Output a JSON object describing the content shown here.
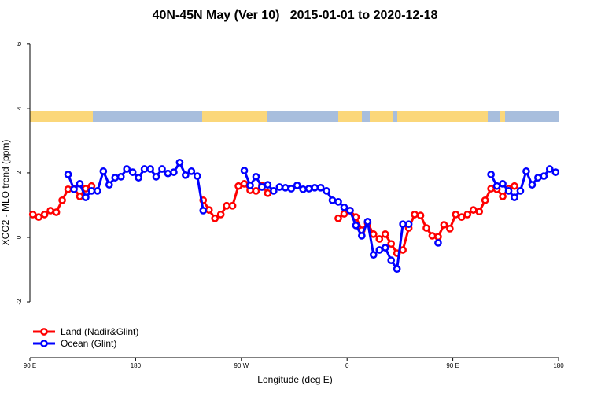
{
  "chart_data": {
    "type": "line",
    "title": "40N-45N May (Ver 10)   2015-01-01 to 2020-12-18",
    "xlabel": "Longitude (deg E)",
    "ylabel": "XCO2 - MLO trend (ppm)",
    "xlim": [
      90,
      540
    ],
    "ylim": [
      -3.73,
      6.63
    ],
    "xticks": [
      {
        "value": 90,
        "label": "90 E"
      },
      {
        "value": 180,
        "label": "180"
      },
      {
        "value": 270,
        "label": "90 W"
      },
      {
        "value": 360,
        "label": "0"
      },
      {
        "value": 450,
        "label": "90 E"
      },
      {
        "value": 540,
        "label": "180"
      }
    ],
    "yticks": [
      -2,
      0,
      2,
      4,
      6
    ],
    "legend": "bottom-left",
    "series": [
      {
        "name": "Land (Nadir&Glint)",
        "color": "#ff0000",
        "x": [
          92.5,
          97.5,
          102.5,
          107.5,
          112.5,
          117.5,
          122.5,
          127.5,
          132.5,
          137.5,
          142.5,
          147.5,
          237.5,
          242.5,
          247.5,
          252.5,
          257.5,
          262.5,
          267.5,
          272.5,
          277.5,
          282.5,
          287.5,
          292.5,
          297.5,
          352.5,
          357.5,
          362.5,
          367.5,
          372.5,
          377.5,
          382.5,
          387.5,
          392.5,
          397.5,
          402.5,
          407.5,
          412.5,
          417.5,
          422.5,
          427.5,
          432.5,
          437.5,
          442.5,
          447.5,
          452.5,
          457.5,
          462.5,
          467.5,
          472.5,
          477.5,
          482.5,
          487.5,
          492.5,
          497.5,
          502.5
        ],
        "values": [
          0.71,
          0.63,
          0.71,
          0.83,
          0.78,
          1.15,
          1.49,
          1.51,
          1.27,
          1.51,
          1.59,
          null,
          1.15,
          0.85,
          0.59,
          0.71,
          0.98,
          0.98,
          1.59,
          1.66,
          1.46,
          1.44,
          1.61,
          1.37,
          null,
          0.59,
          0.73,
          0.83,
          0.63,
          0.22,
          0.44,
          0.1,
          -0.05,
          0.1,
          -0.2,
          -0.49,
          -0.39,
          0.29,
          0.71,
          0.68,
          0.29,
          0.05,
          0.02,
          0.39,
          0.27,
          0.71,
          0.63,
          0.71,
          0.85,
          0.8,
          1.15,
          1.51,
          1.49,
          1.27,
          1.51,
          1.59
        ]
      },
      {
        "name": "Ocean (Glint)",
        "color": "#0000ff",
        "x": [
          122.5,
          127.5,
          132.5,
          137.5,
          142.5,
          147.5,
          152.5,
          157.5,
          162.5,
          167.5,
          172.5,
          177.5,
          182.5,
          187.5,
          192.5,
          197.5,
          202.5,
          207.5,
          212.5,
          217.5,
          222.5,
          227.5,
          232.5,
          237.5,
          242.5,
          272.5,
          277.5,
          282.5,
          287.5,
          292.5,
          297.5,
          302.5,
          307.5,
          312.5,
          317.5,
          322.5,
          327.5,
          332.5,
          337.5,
          342.5,
          347.5,
          352.5,
          357.5,
          362.5,
          367.5,
          372.5,
          377.5,
          382.5,
          387.5,
          392.5,
          397.5,
          402.5,
          407.5,
          412.5,
          417.5,
          437.5,
          442.5,
          482.5,
          487.5,
          492.5,
          497.5,
          502.5,
          507.5,
          512.5,
          517.5,
          522.5,
          527.5,
          532.5,
          537.5
        ],
        "values": [
          1.95,
          1.49,
          1.66,
          1.24,
          1.44,
          1.44,
          2.05,
          1.63,
          1.85,
          1.88,
          2.12,
          2.02,
          1.85,
          2.12,
          2.12,
          1.88,
          2.12,
          1.98,
          2.02,
          2.32,
          1.93,
          2.05,
          1.9,
          0.83,
          null,
          2.07,
          1.61,
          1.88,
          1.56,
          1.63,
          1.44,
          1.56,
          1.54,
          1.51,
          1.61,
          1.49,
          1.51,
          1.54,
          1.54,
          1.44,
          1.15,
          1.1,
          0.93,
          0.83,
          0.37,
          0.05,
          0.49,
          -0.54,
          -0.39,
          -0.32,
          -0.71,
          -0.98,
          0.41,
          0.41,
          null,
          -0.17,
          null,
          1.95,
          1.59,
          1.66,
          1.44,
          1.24,
          1.44,
          2.05,
          1.63,
          1.85,
          1.9,
          2.12,
          2.02
        ]
      }
    ]
  }
}
